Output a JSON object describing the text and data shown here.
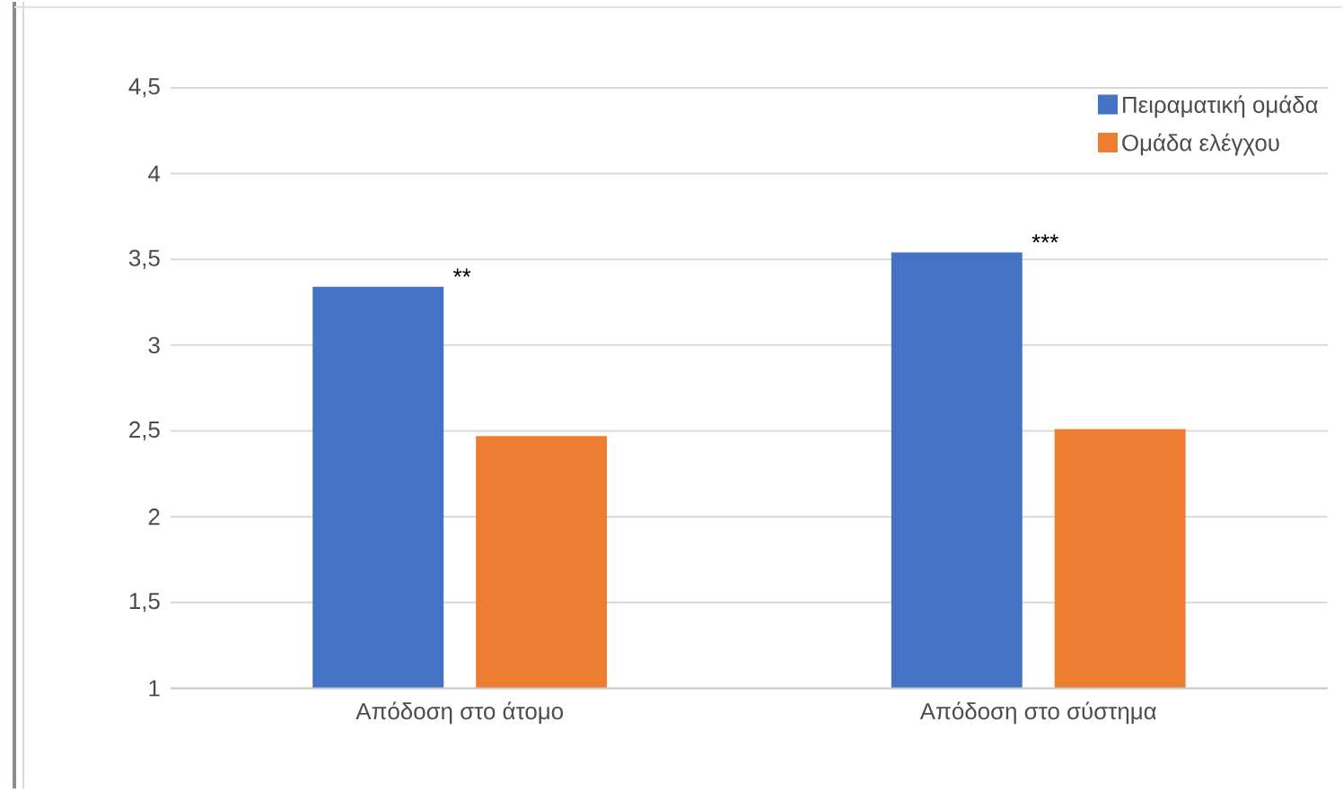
{
  "chart_data": {
    "type": "bar",
    "categories": [
      "Απόδοση στο άτομο",
      "Απόδοση στο σύστημα"
    ],
    "series": [
      {
        "name": "Πειραματική ομάδα",
        "color": "#4472c4",
        "values": [
          3.34,
          3.54
        ]
      },
      {
        "name": "Ομάδα ελέγχου",
        "color": "#ed7d31",
        "values": [
          2.47,
          2.51
        ]
      }
    ],
    "ylim": [
      1,
      4.5
    ],
    "yticks": [
      1,
      {
        "value": 1.5,
        "label": "1,5"
      },
      2,
      {
        "value": 2.5,
        "label": "2,5"
      },
      3,
      {
        "value": 3.5,
        "label": "3,5"
      },
      4,
      {
        "value": 4.5,
        "label": "4,5"
      }
    ],
    "grid": "y",
    "legend": "top right",
    "annotations": [
      "**",
      "***"
    ]
  }
}
